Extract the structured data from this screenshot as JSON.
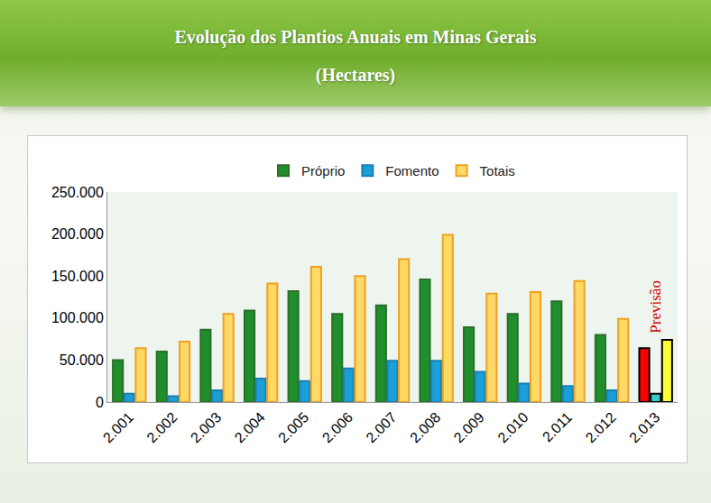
{
  "chart_data": {
    "type": "bar",
    "title": "Evolução dos Plantios Anuais  em Minas Gerais",
    "subtitle": "(Hectares)",
    "categories": [
      "2.001",
      "2.002",
      "2.003",
      "2.004",
      "2.005",
      "2.006",
      "2.007",
      "2.008",
      "2.009",
      "2.010",
      "2.011",
      "2.012",
      "2.013"
    ],
    "series": [
      {
        "name": "Próprio",
        "color": "#1f8f2b",
        "colors": [
          "#1f8f2b",
          "#1f8f2b",
          "#1f8f2b",
          "#1f8f2b",
          "#1f8f2b",
          "#1f8f2b",
          "#1f8f2b",
          "#1f8f2b",
          "#1f8f2b",
          "#1f8f2b",
          "#1f8f2b",
          "#1f8f2b",
          "#ff0000"
        ],
        "values": [
          50000,
          60000,
          86000,
          109000,
          132000,
          105000,
          115000,
          146000,
          89000,
          105000,
          120000,
          80000,
          64000
        ]
      },
      {
        "name": "Fomento",
        "color": "#1a9fd8",
        "colors": [
          "#1a9fd8",
          "#1a9fd8",
          "#1a9fd8",
          "#1a9fd8",
          "#1a9fd8",
          "#1a9fd8",
          "#1a9fd8",
          "#1a9fd8",
          "#1a9fd8",
          "#1a9fd8",
          "#1a9fd8",
          "#1a9fd8",
          "#33cccc"
        ],
        "values": [
          10000,
          7000,
          14000,
          28000,
          25000,
          40000,
          49000,
          49000,
          36000,
          22000,
          19000,
          14000,
          10000
        ]
      },
      {
        "name": "Totais",
        "color": "#ffd966",
        "colors": [
          "#ffd966",
          "#ffd966",
          "#ffd966",
          "#ffd966",
          "#ffd966",
          "#ffd966",
          "#ffd966",
          "#ffd966",
          "#ffd966",
          "#ffd966",
          "#ffd966",
          "#ffd966",
          "#ffff33"
        ],
        "values": [
          64000,
          72000,
          105000,
          141000,
          161000,
          150000,
          170000,
          199000,
          129000,
          131000,
          144000,
          99000,
          74000
        ]
      }
    ],
    "ylim": [
      0,
      250000
    ],
    "yticks": [
      0,
      {
        "value": 50000,
        "label": "50.000"
      },
      {
        "value": 100000,
        "label": "100.000"
      },
      {
        "value": 150000,
        "label": "150.000"
      },
      {
        "value": 200000,
        "label": "200.000"
      },
      {
        "value": 250000,
        "label": "250.000"
      }
    ],
    "grid": false,
    "legend": "top",
    "annotations": [
      {
        "text": "Previsão",
        "category": "2.013",
        "color": "#cc0000"
      }
    ]
  }
}
